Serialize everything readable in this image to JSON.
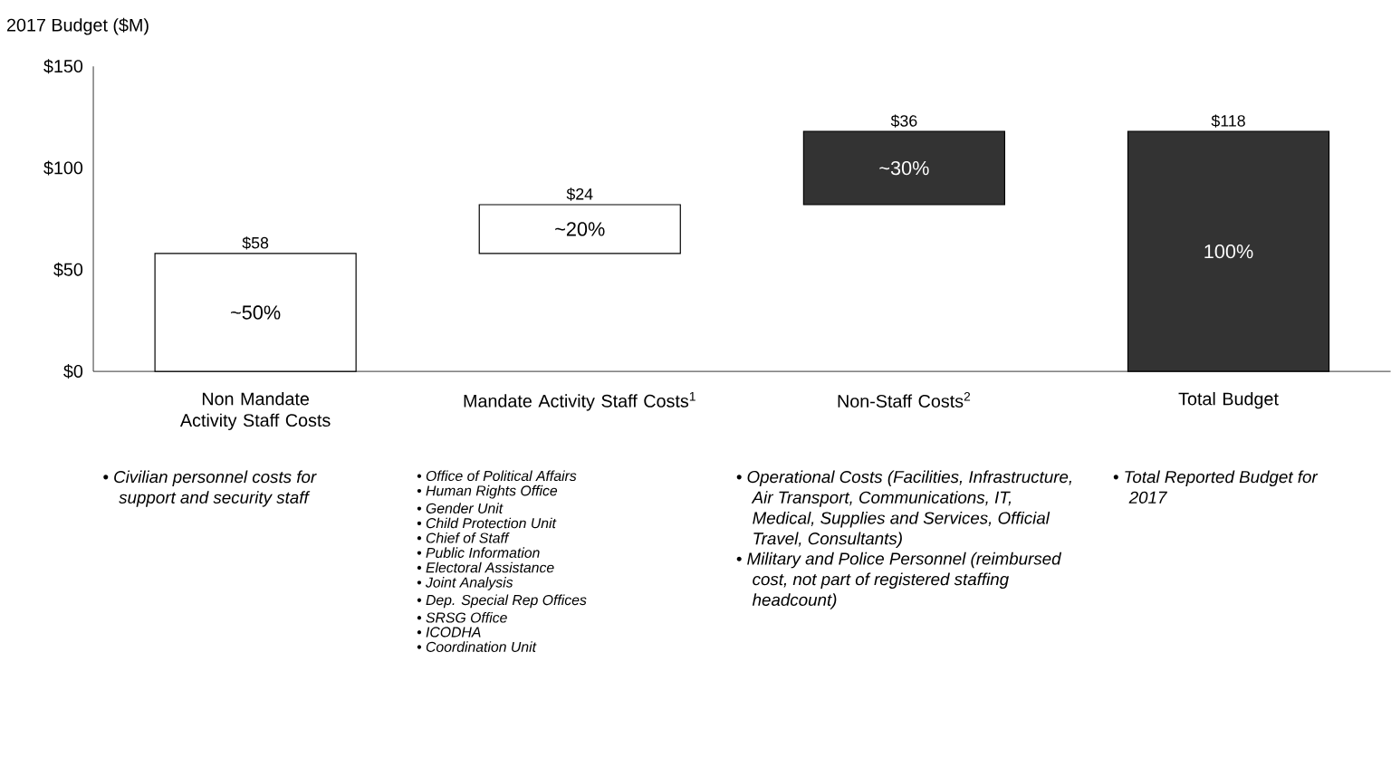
{
  "chart_data": {
    "type": "bar",
    "ylabel": "2017 Budget ($M)",
    "categories": [
      "Non Mandate Activity Staff Costs",
      "Mandate Activity Staff Costs$^{1}$",
      "Non-Staff Costs$^{2}$",
      "Total Budget"
    ],
    "values": [
      58,
      24,
      36,
      118
    ],
    "base": [
      0,
      58,
      82,
      0
    ],
    "colors": [
      "#ffffff",
      "#ffffff",
      "#333333",
      "#333333"
    ],
    "value_labels": [
      "$58",
      "$24",
      "$36",
      "$118"
    ],
    "ylim": [
      0,
      150
    ],
    "yticks": [
      {
        "value": 0,
        "label": "$0"
      },
      {
        "value": 50,
        "label": "$50"
      },
      {
        "value": 100,
        "label": "$100"
      },
      {
        "value": 150,
        "label": "$150"
      }
    ],
    "annotations": [
      "~50%",
      "~20%",
      "~30%",
      "100%",
      "• Civilian personnel costs for support and security staff",
      "• Office of Political Affairs",
      "• Human Rights Office",
      "• Gender Unit",
      "• Child Protection Unit",
      "• Chief of Staff",
      "• Public Information",
      "• Electoral Assistance",
      "• Joint Analysis",
      "• Dep. Special Rep Offices",
      "• SRSG Office",
      "• ICODHA",
      "• Coordination Unit",
      "• Operational Costs (Facilities, Infrastructure, Air Transport, Communications, IT, Medical, Supplies and Services, Official Travel, Consultants)",
      "• Military and Police Personnel (reimbursed cost, not part of registered staffing headcount)",
      "• Total Reported Budget for 2017"
    ]
  }
}
